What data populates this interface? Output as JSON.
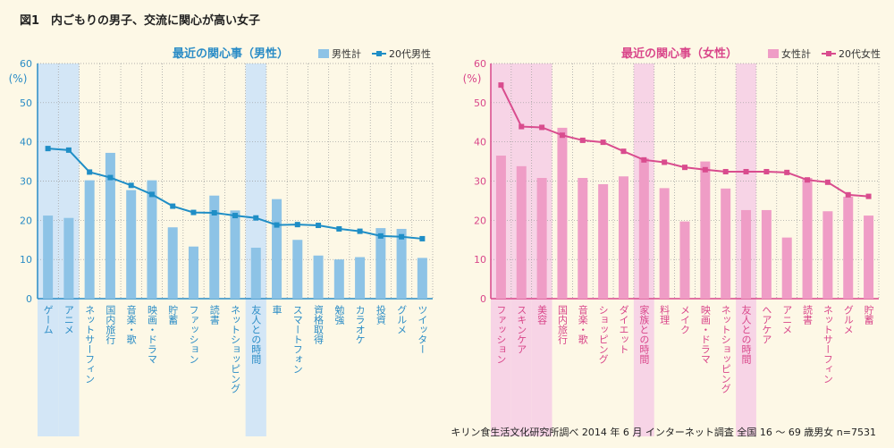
{
  "figure_label": "図1　内ごもりの男子、交流に関心が高い女子",
  "source": "キリン食生活文化研究所調べ 2014 年 6 月 インターネット調査 全国 16 ～ 69 歳男女 n=7531",
  "colors": {
    "male_bar": "#8dc3e6",
    "male_line": "#1f8ec6",
    "male_highlight": "#d3e6f6",
    "male_text": "#2a8cc6",
    "female_bar": "#ef9dc6",
    "female_line": "#d94c8e",
    "female_highlight": "#f7d4e6",
    "female_text": "#d9468a"
  },
  "chart_data": [
    {
      "type": "bar",
      "title": "最近の関心事（男性）",
      "ylabel": "(%)",
      "ylim": [
        0,
        60
      ],
      "yticks": [
        0,
        10,
        20,
        30,
        40,
        50,
        60
      ],
      "grid": true,
      "legend_position": "top-right",
      "categories": [
        "ゲーム",
        "アニメ",
        "ネットサーフィン",
        "国内旅行",
        "音楽・歌",
        "映画・ドラマ",
        "貯蓄",
        "ファッション",
        "読書",
        "ネットショッピング",
        "友人との時間",
        "車",
        "スマートフォン",
        "資格取得",
        "勉強",
        "カラオケ",
        "投資",
        "グルメ",
        "ツイッター"
      ],
      "highlight": [
        "ゲーム",
        "アニメ",
        "友人との時間"
      ],
      "series": [
        {
          "name": "男性計",
          "type": "bar",
          "values": [
            21.2,
            20.6,
            30.2,
            37.2,
            27.7,
            30.2,
            18.2,
            13.3,
            26.3,
            22.5,
            13.0,
            25.4,
            15.0,
            11.0,
            10.0,
            10.6,
            18.0,
            17.8,
            10.4
          ]
        },
        {
          "name": "20代男性",
          "type": "line",
          "values": [
            38.3,
            37.9,
            32.3,
            30.9,
            28.9,
            26.6,
            23.6,
            22.0,
            21.9,
            21.2,
            20.6,
            18.8,
            18.9,
            18.7,
            17.8,
            17.2,
            16.0,
            15.8,
            15.3
          ]
        }
      ]
    },
    {
      "type": "bar",
      "title": "最近の関心事（女性）",
      "ylabel": "(%)",
      "ylim": [
        0,
        60
      ],
      "yticks": [
        0,
        10,
        20,
        30,
        40,
        50,
        60
      ],
      "grid": true,
      "legend_position": "top-right",
      "categories": [
        "ファッション",
        "スキンケア",
        "美容",
        "国内旅行",
        "音楽・歌",
        "ショッピング",
        "ダイエット",
        "家族との時間",
        "料理",
        "メイク",
        "映画・ドラマ",
        "ネットショッピング",
        "友人との時間",
        "ヘアケア",
        "アニメ",
        "読書",
        "ネットサーフィン",
        "グルメ",
        "貯蓄"
      ],
      "highlight": [
        "ファッション",
        "スキンケア",
        "美容",
        "家族との時間",
        "友人との時間"
      ],
      "series": [
        {
          "name": "女性計",
          "type": "bar",
          "values": [
            36.5,
            33.8,
            30.8,
            43.6,
            30.8,
            29.2,
            31.2,
            35.8,
            28.2,
            19.7,
            35.0,
            28.1,
            22.6,
            22.6,
            15.6,
            30.8,
            22.3,
            26.0,
            21.2
          ]
        },
        {
          "name": "20代女性",
          "type": "line",
          "values": [
            54.5,
            43.9,
            43.7,
            41.7,
            40.4,
            39.9,
            37.6,
            35.4,
            34.8,
            33.5,
            32.9,
            32.4,
            32.4,
            32.4,
            32.2,
            30.3,
            29.7,
            26.5,
            26.1
          ]
        }
      ]
    }
  ]
}
